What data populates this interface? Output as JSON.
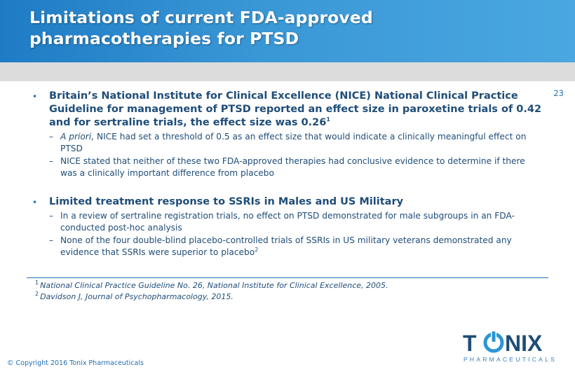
{
  "slide": {
    "title_line1": "Limitations of current FDA-approved",
    "title_line2": "pharmacotherapies for PTSD",
    "page_number": "23"
  },
  "bullets": [
    {
      "text": "Britain’s National Institute for Clinical Excellence (NICE) National Clinical Practice Guideline for management of PTSD reported an effect size in paroxetine trials of 0.42 and for sertraline trials, the effect size was 0.26",
      "sup": "1",
      "subs": [
        {
          "italic": "A priori,",
          "text": " NICE had set a threshold of 0.5 as an effect size that would indicate a clinically meaningful effect on PTSD"
        },
        {
          "text": "NICE stated that neither of these two FDA-approved therapies had conclusive evidence to determine if there was a clinically important difference from placebo"
        }
      ]
    },
    {
      "text": "Limited treatment response to SSRIs in Males and US Military",
      "subs": [
        {
          "text": "In a review of sertraline registration trials, no effect on PTSD demonstrated for male subgroups in an FDA-conducted post-hoc analysis"
        },
        {
          "text": "None of the four double-blind placebo-controlled trials of SSRIs in US military veterans demonstrated any evidence that SSRIs were superior to placebo",
          "sup": "2"
        }
      ]
    }
  ],
  "footnotes": [
    {
      "num": "1",
      "text": "National Clinical Practice Guideline No. 26, National Institute for Clinical Excellence, 2005."
    },
    {
      "num": "2",
      "text": "Davidson J, Journal of Psychopharmacology, 2015."
    }
  ],
  "footer": {
    "copyright": "© Copyright 2016 Tonix Pharmaceuticals",
    "logo_word": "T NIX",
    "logo_left": "T",
    "logo_right": "NIX",
    "logo_sub": "PHARMACEUTICALS"
  },
  "colors": {
    "header": "#2a87cc",
    "text": "#1f4d78",
    "accent": "#1f6fb3",
    "subbar": "#dcdcdc"
  }
}
